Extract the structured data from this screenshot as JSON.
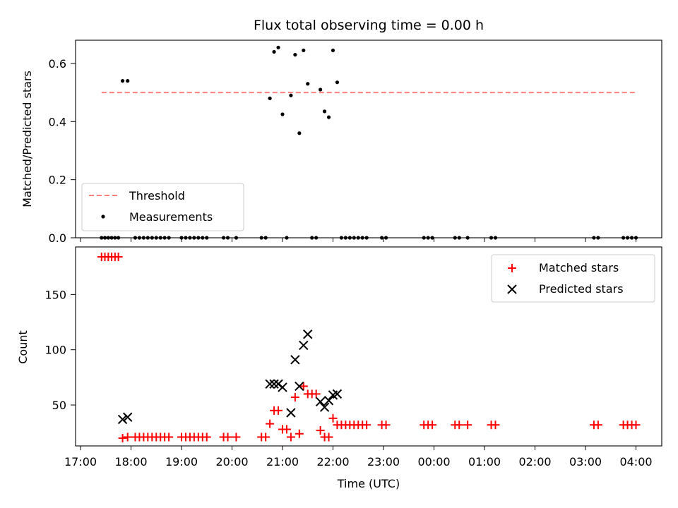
{
  "chart_data": [
    {
      "type": "scatter",
      "title": "Flux total observing time = 0.00 h",
      "ylabel": "Matched/Predicted stars",
      "xlabel": "",
      "ylim": [
        0,
        0.68
      ],
      "yticks": [
        "0.0",
        "0.2",
        "0.4",
        "0.6"
      ],
      "ytick_values": [
        0,
        0.2,
        0.4,
        0.6
      ],
      "legend_position": "lower-left",
      "threshold": {
        "name": "Threshold",
        "value": 0.5,
        "x_start": "17:25",
        "x_end": "04:00",
        "color": "#ff7f7f"
      },
      "series": [
        {
          "name": "Measurements",
          "color": "#000000",
          "points": [
            [
              "17:25",
              0
            ],
            [
              "17:29",
              0
            ],
            [
              "17:33",
              0
            ],
            [
              "17:37",
              0
            ],
            [
              "17:41",
              0
            ],
            [
              "17:45",
              0
            ],
            [
              "17:50",
              0.54
            ],
            [
              "17:56",
              0.54
            ],
            [
              "18:05",
              0
            ],
            [
              "18:10",
              0
            ],
            [
              "18:15",
              0
            ],
            [
              "18:20",
              0
            ],
            [
              "18:25",
              0
            ],
            [
              "18:30",
              0
            ],
            [
              "18:35",
              0
            ],
            [
              "18:40",
              0
            ],
            [
              "18:45",
              0
            ],
            [
              "19:00",
              0
            ],
            [
              "19:05",
              0
            ],
            [
              "19:10",
              0
            ],
            [
              "19:15",
              0
            ],
            [
              "19:20",
              0
            ],
            [
              "19:25",
              0
            ],
            [
              "19:30",
              0
            ],
            [
              "19:50",
              0
            ],
            [
              "19:55",
              0
            ],
            [
              "20:05",
              0
            ],
            [
              "20:35",
              0
            ],
            [
              "20:40",
              0
            ],
            [
              "20:45",
              0.48
            ],
            [
              "20:50",
              0.64
            ],
            [
              "20:55",
              0.655
            ],
            [
              "21:00",
              0.425
            ],
            [
              "21:05",
              0
            ],
            [
              "21:10",
              0.49
            ],
            [
              "21:15",
              0.63
            ],
            [
              "21:20",
              0.36
            ],
            [
              "21:25",
              0.645
            ],
            [
              "21:30",
              0.53
            ],
            [
              "21:35",
              0
            ],
            [
              "21:40",
              0
            ],
            [
              "21:45",
              0.51
            ],
            [
              "21:50",
              0.435
            ],
            [
              "21:55",
              0.415
            ],
            [
              "22:00",
              0.645
            ],
            [
              "22:05",
              0.535
            ],
            [
              "22:10",
              0
            ],
            [
              "22:15",
              0
            ],
            [
              "22:20",
              0
            ],
            [
              "22:25",
              0
            ],
            [
              "22:30",
              0
            ],
            [
              "22:35",
              0
            ],
            [
              "22:40",
              0
            ],
            [
              "22:58",
              0
            ],
            [
              "23:03",
              0
            ],
            [
              "23:48",
              0
            ],
            [
              "23:53",
              0
            ],
            [
              "23:58",
              0
            ],
            [
              "00:25",
              0
            ],
            [
              "00:30",
              0
            ],
            [
              "00:40",
              0
            ],
            [
              "01:08",
              0
            ],
            [
              "01:13",
              0
            ],
            [
              "03:10",
              0
            ],
            [
              "03:15",
              0
            ],
            [
              "03:45",
              0
            ],
            [
              "03:50",
              0
            ],
            [
              "03:55",
              0
            ],
            [
              "04:00",
              0
            ]
          ]
        }
      ]
    },
    {
      "type": "scatter",
      "title": "",
      "ylabel": "Count",
      "xlabel": "Time (UTC)",
      "ylim": [
        13,
        193
      ],
      "yticks": [
        "50",
        "100",
        "150"
      ],
      "ytick_values": [
        50,
        100,
        150
      ],
      "x_range": [
        "16:55",
        "04:30"
      ],
      "xticks": [
        "17:00",
        "18:00",
        "19:00",
        "20:00",
        "21:00",
        "22:00",
        "23:00",
        "00:00",
        "01:00",
        "02:00",
        "03:00",
        "04:00"
      ],
      "legend_position": "top-right",
      "series": [
        {
          "name": "Matched stars",
          "marker": "plus",
          "color": "#ff0000",
          "points": [
            [
              "17:25",
              184
            ],
            [
              "17:29",
              184
            ],
            [
              "17:33",
              184
            ],
            [
              "17:37",
              184
            ],
            [
              "17:41",
              184
            ],
            [
              "17:45",
              184
            ],
            [
              "17:50",
              20
            ],
            [
              "17:56",
              21
            ],
            [
              "18:05",
              21
            ],
            [
              "18:10",
              21
            ],
            [
              "18:15",
              21
            ],
            [
              "18:20",
              21
            ],
            [
              "18:25",
              21
            ],
            [
              "18:30",
              21
            ],
            [
              "18:35",
              21
            ],
            [
              "18:40",
              21
            ],
            [
              "18:45",
              21
            ],
            [
              "19:00",
              21
            ],
            [
              "19:05",
              21
            ],
            [
              "19:10",
              21
            ],
            [
              "19:15",
              21
            ],
            [
              "19:20",
              21
            ],
            [
              "19:25",
              21
            ],
            [
              "19:30",
              21
            ],
            [
              "19:50",
              21
            ],
            [
              "19:55",
              21
            ],
            [
              "20:05",
              21
            ],
            [
              "20:35",
              21
            ],
            [
              "20:40",
              21
            ],
            [
              "20:45",
              33
            ],
            [
              "20:50",
              45
            ],
            [
              "20:55",
              45
            ],
            [
              "21:00",
              28
            ],
            [
              "21:05",
              28
            ],
            [
              "21:10",
              21
            ],
            [
              "21:15",
              57
            ],
            [
              "21:20",
              24
            ],
            [
              "21:25",
              67
            ],
            [
              "21:30",
              60
            ],
            [
              "21:35",
              60
            ],
            [
              "21:40",
              60
            ],
            [
              "21:45",
              27
            ],
            [
              "21:50",
              21
            ],
            [
              "21:55",
              21
            ],
            [
              "22:00",
              38
            ],
            [
              "22:05",
              32
            ],
            [
              "22:10",
              32
            ],
            [
              "22:15",
              32
            ],
            [
              "22:20",
              32
            ],
            [
              "22:25",
              32
            ],
            [
              "22:30",
              32
            ],
            [
              "22:35",
              32
            ],
            [
              "22:40",
              32
            ],
            [
              "22:58",
              32
            ],
            [
              "23:03",
              32
            ],
            [
              "23:48",
              32
            ],
            [
              "23:53",
              32
            ],
            [
              "23:58",
              32
            ],
            [
              "00:25",
              32
            ],
            [
              "00:30",
              32
            ],
            [
              "00:40",
              32
            ],
            [
              "01:08",
              32
            ],
            [
              "01:13",
              32
            ],
            [
              "03:10",
              32
            ],
            [
              "03:15",
              32
            ],
            [
              "03:45",
              32
            ],
            [
              "03:50",
              32
            ],
            [
              "03:55",
              32
            ],
            [
              "04:00",
              32
            ]
          ]
        },
        {
          "name": "Predicted stars",
          "marker": "x",
          "color": "#000000",
          "points": [
            [
              "17:50",
              37
            ],
            [
              "17:56",
              39
            ],
            [
              "20:45",
              69
            ],
            [
              "20:50",
              69
            ],
            [
              "20:55",
              69
            ],
            [
              "21:00",
              66
            ],
            [
              "21:10",
              43
            ],
            [
              "21:15",
              91
            ],
            [
              "21:20",
              67
            ],
            [
              "21:25",
              104
            ],
            [
              "21:30",
              114
            ],
            [
              "21:45",
              53
            ],
            [
              "21:50",
              48
            ],
            [
              "21:55",
              54
            ],
            [
              "22:00",
              59
            ],
            [
              "22:05",
              60
            ]
          ]
        }
      ]
    }
  ]
}
